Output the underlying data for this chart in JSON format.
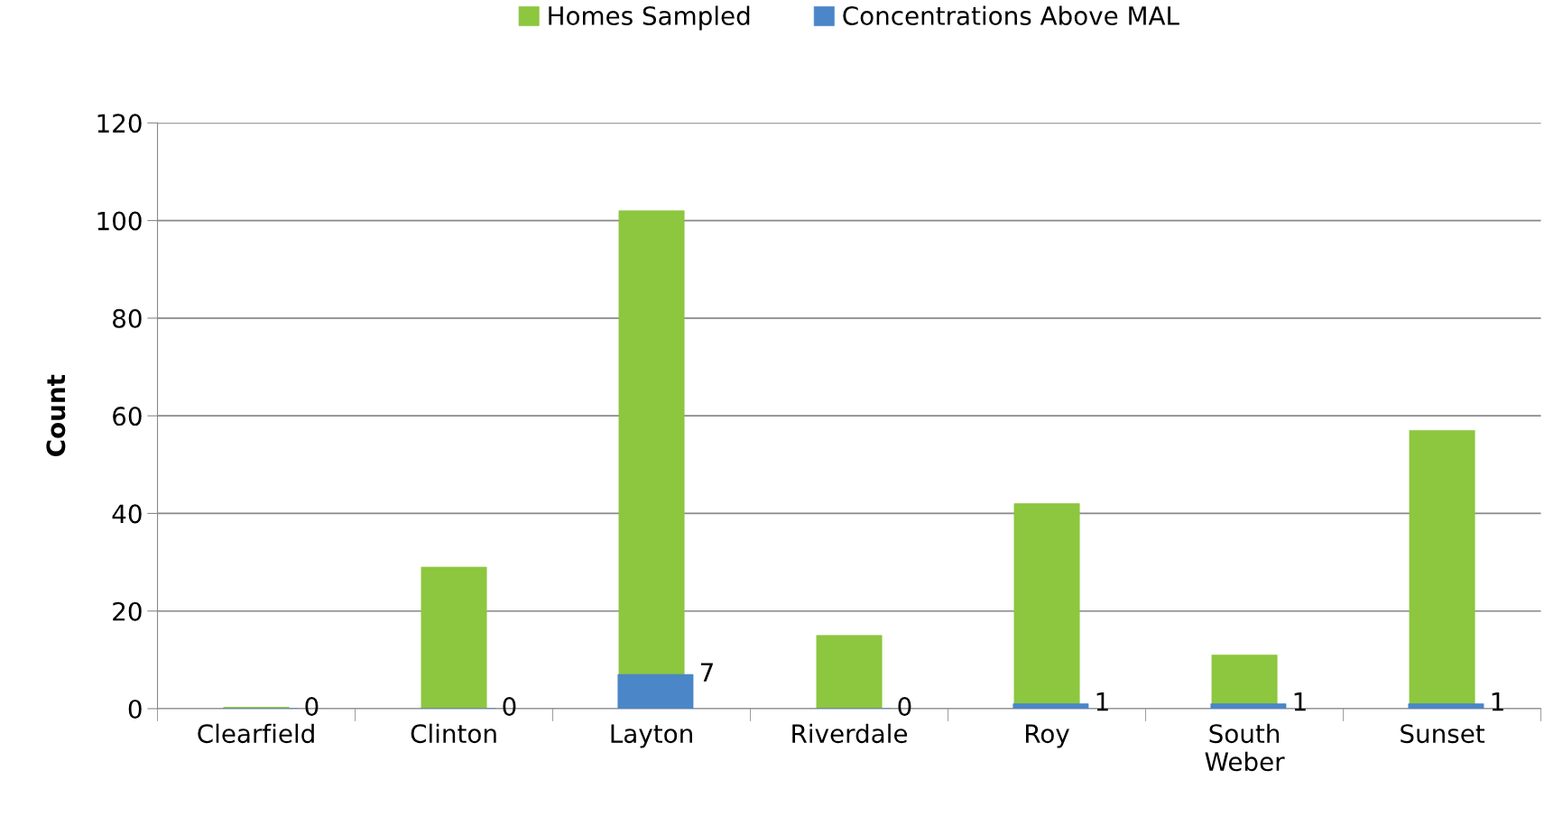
{
  "chart_data": {
    "type": "bar",
    "ylabel": "Count",
    "categories": [
      "Clearfield",
      "Clinton",
      "Layton",
      "Riverdale",
      "Roy",
      "South Weber",
      "Sunset"
    ],
    "series": [
      {
        "name": "Homes Sampled",
        "color": "#8dc63f",
        "values": [
          0.3,
          29,
          102,
          15,
          42,
          11,
          57
        ]
      },
      {
        "name": "Concentrations Above MAL",
        "color": "#4a86c8",
        "values": [
          0,
          0,
          7,
          0,
          1,
          1,
          1
        ],
        "value_labels": [
          "0",
          "0",
          "7",
          "0",
          "1",
          "1",
          "1"
        ]
      }
    ],
    "ylim": [
      0,
      120
    ],
    "yticks": [
      0,
      20,
      40,
      60,
      80,
      100,
      120
    ],
    "grid": "y",
    "legend": "top"
  }
}
